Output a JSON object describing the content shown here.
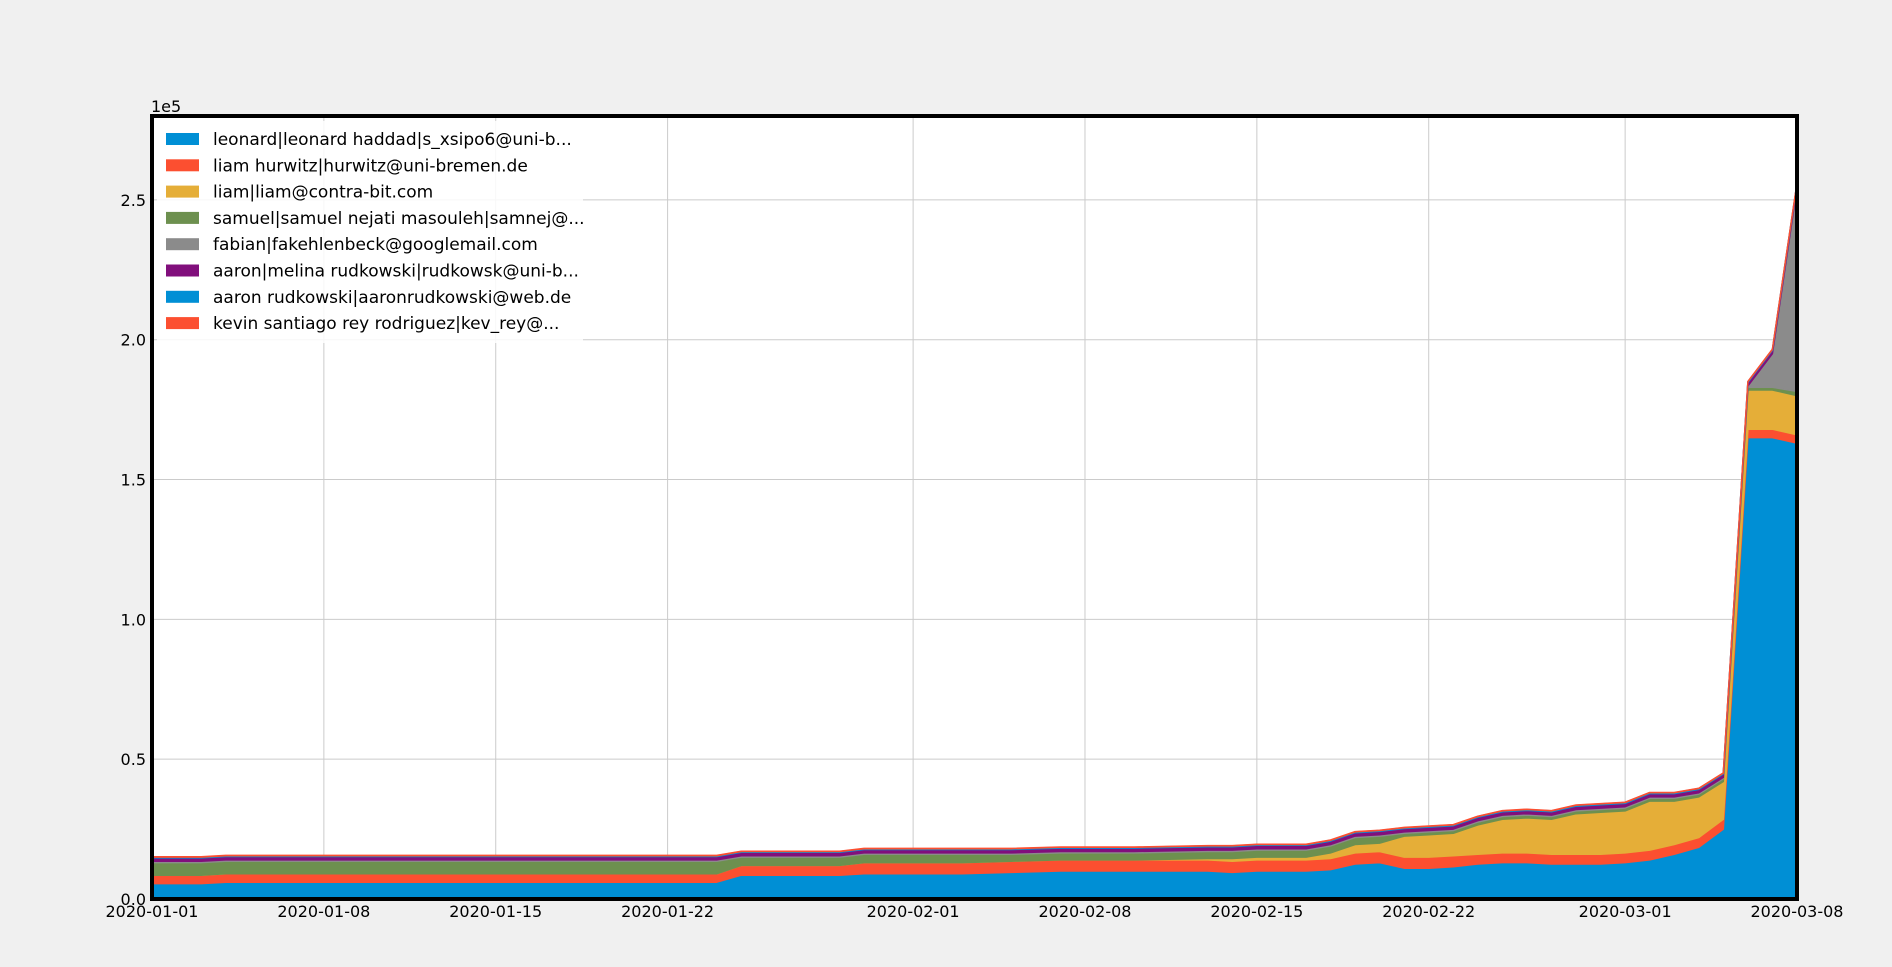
{
  "chart_data": {
    "type": "area",
    "stacked": true,
    "x_type": "date",
    "xlim": [
      "2020-01-01",
      "2020-03-08"
    ],
    "ylim": [
      0,
      2.8
    ],
    "y_multiplier_label": "1e5",
    "x_ticks": [
      "2020-01-01",
      "2020-01-08",
      "2020-01-15",
      "2020-01-22",
      "2020-02-01",
      "2020-02-08",
      "2020-02-15",
      "2020-02-22",
      "2020-03-01",
      "2020-03-08"
    ],
    "y_ticks": [
      0.0,
      0.5,
      1.0,
      1.5,
      2.0,
      2.5
    ],
    "y_tick_labels": [
      "0.0",
      "0.5",
      "1.0",
      "1.5",
      "2.0",
      "2.5"
    ],
    "grid": true,
    "legend_position": "top-left",
    "x": [
      "2020-01-01",
      "2020-01-03",
      "2020-01-04",
      "2020-01-24",
      "2020-01-25",
      "2020-01-29",
      "2020-01-30",
      "2020-02-03",
      "2020-02-05",
      "2020-02-07",
      "2020-02-10",
      "2020-02-13",
      "2020-02-14",
      "2020-02-15",
      "2020-02-16",
      "2020-02-17",
      "2020-02-18",
      "2020-02-19",
      "2020-02-20",
      "2020-02-21",
      "2020-02-22",
      "2020-02-23",
      "2020-02-24",
      "2020-02-25",
      "2020-02-26",
      "2020-02-27",
      "2020-02-28",
      "2020-02-29",
      "2020-03-01",
      "2020-03-02",
      "2020-03-03",
      "2020-03-04",
      "2020-03-05",
      "2020-03-06",
      "2020-03-07",
      "2020-03-08"
    ],
    "series": [
      {
        "name": "leonard|leonard haddad|s_xsipo6@uni-b...",
        "color": "#008fd5",
        "values": [
          0.055,
          0.055,
          0.06,
          0.06,
          0.085,
          0.085,
          0.09,
          0.09,
          0.095,
          0.1,
          0.1,
          0.1,
          0.095,
          0.1,
          0.1,
          0.1,
          0.105,
          0.125,
          0.13,
          0.11,
          0.11,
          0.115,
          0.125,
          0.13,
          0.13,
          0.125,
          0.125,
          0.125,
          0.13,
          0.14,
          0.16,
          0.185,
          0.25,
          1.65,
          1.65,
          1.63
        ]
      },
      {
        "name": "liam hurwitz|hurwitz@uni-bremen.de",
        "color": "#fc4f30",
        "values": [
          0.03,
          0.03,
          0.03,
          0.03,
          0.035,
          0.035,
          0.04,
          0.04,
          0.04,
          0.04,
          0.04,
          0.04,
          0.04,
          0.04,
          0.04,
          0.04,
          0.04,
          0.04,
          0.04,
          0.04,
          0.04,
          0.04,
          0.035,
          0.035,
          0.035,
          0.035,
          0.035,
          0.035,
          0.035,
          0.035,
          0.035,
          0.035,
          0.035,
          0.03,
          0.03,
          0.03
        ]
      },
      {
        "name": "liam|liam@contra-bit.com",
        "color": "#e5ae38",
        "values": [
          0.0,
          0.0,
          0.0,
          0.0,
          0.0,
          0.0,
          0.0,
          0.0,
          0.0,
          0.0,
          0.0,
          0.005,
          0.01,
          0.01,
          0.01,
          0.01,
          0.02,
          0.03,
          0.03,
          0.075,
          0.08,
          0.08,
          0.105,
          0.12,
          0.125,
          0.125,
          0.145,
          0.15,
          0.15,
          0.175,
          0.155,
          0.145,
          0.135,
          0.14,
          0.14,
          0.14
        ]
      },
      {
        "name": "samuel|samuel nejati masouleh|samnej@...",
        "color": "#6d904f",
        "values": [
          0.045,
          0.045,
          0.045,
          0.045,
          0.03,
          0.03,
          0.03,
          0.03,
          0.025,
          0.025,
          0.025,
          0.025,
          0.025,
          0.025,
          0.025,
          0.025,
          0.025,
          0.025,
          0.025,
          0.01,
          0.01,
          0.01,
          0.01,
          0.01,
          0.01,
          0.01,
          0.01,
          0.01,
          0.01,
          0.01,
          0.01,
          0.01,
          0.01,
          0.01,
          0.01,
          0.015
        ]
      },
      {
        "name": "fabian|fakehlenbeck@googlemail.com",
        "color": "#8b8b8b",
        "values": [
          0.005,
          0.005,
          0.005,
          0.005,
          0.005,
          0.005,
          0.005,
          0.005,
          0.005,
          0.005,
          0.005,
          0.005,
          0.005,
          0.005,
          0.005,
          0.005,
          0.005,
          0.005,
          0.005,
          0.005,
          0.005,
          0.005,
          0.005,
          0.005,
          0.005,
          0.005,
          0.005,
          0.005,
          0.005,
          0.005,
          0.005,
          0.005,
          0.005,
          0.005,
          0.12,
          0.73
        ]
      },
      {
        "name": "aaron|melina rudkowski|rudkowsk@uni-b...",
        "color": "#810f7c",
        "values": [
          0.012,
          0.012,
          0.012,
          0.012,
          0.012,
          0.012,
          0.012,
          0.012,
          0.012,
          0.012,
          0.012,
          0.012,
          0.012,
          0.012,
          0.012,
          0.012,
          0.012,
          0.012,
          0.012,
          0.012,
          0.012,
          0.012,
          0.012,
          0.012,
          0.012,
          0.012,
          0.012,
          0.012,
          0.012,
          0.012,
          0.012,
          0.012,
          0.012,
          0.012,
          0.012,
          0.012
        ]
      },
      {
        "name": "aaron rudkowski|aaronrudkowski@web.de",
        "color": "#008fd5",
        "values": [
          0.003,
          0.003,
          0.003,
          0.003,
          0.003,
          0.003,
          0.003,
          0.003,
          0.003,
          0.003,
          0.003,
          0.003,
          0.003,
          0.003,
          0.003,
          0.003,
          0.003,
          0.003,
          0.003,
          0.003,
          0.003,
          0.003,
          0.003,
          0.003,
          0.003,
          0.003,
          0.003,
          0.003,
          0.003,
          0.003,
          0.003,
          0.003,
          0.003,
          0.003,
          0.003,
          0.003
        ]
      },
      {
        "name": "kevin santiago rey rodriguez|kev_rey@...",
        "color": "#fc4f30",
        "values": [
          0.001,
          0.001,
          0.001,
          0.001,
          0.001,
          0.001,
          0.001,
          0.001,
          0.001,
          0.001,
          0.001,
          0.001,
          0.001,
          0.001,
          0.001,
          0.001,
          0.001,
          0.001,
          0.001,
          0.001,
          0.001,
          0.001,
          0.001,
          0.001,
          0.001,
          0.001,
          0.001,
          0.001,
          0.001,
          0.001,
          0.001,
          0.001,
          0.001,
          0.001,
          0.001,
          0.001
        ]
      }
    ]
  }
}
